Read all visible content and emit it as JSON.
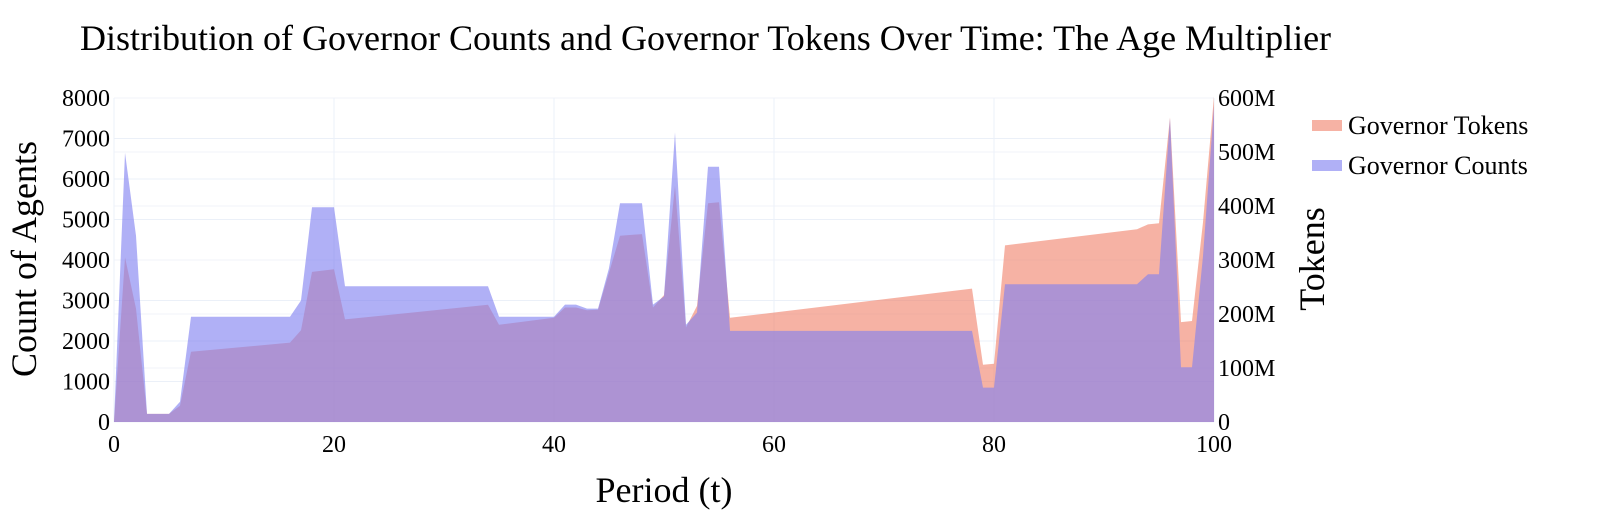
{
  "chart_data": {
    "type": "area",
    "title": "Distribution of Governor Counts and Governor Tokens Over Time: The Age Multiplier",
    "xlabel": "Period (t)",
    "ylabel": "Count of Agents",
    "y2label": "Tokens",
    "xlim": [
      0,
      100
    ],
    "ylim": [
      0,
      8000
    ],
    "y2lim": [
      0,
      600000000
    ],
    "x_ticks": [
      0,
      20,
      40,
      60,
      80,
      100
    ],
    "x_tick_labels": [
      "0",
      "20",
      "40",
      "60",
      "80",
      "100"
    ],
    "y_ticks": [
      0,
      1000,
      2000,
      3000,
      4000,
      5000,
      6000,
      7000,
      8000
    ],
    "y_tick_labels": [
      "0",
      "1000",
      "2000",
      "3000",
      "4000",
      "5000",
      "6000",
      "7000",
      "8000"
    ],
    "y2_ticks": [
      0,
      100000000,
      200000000,
      300000000,
      400000000,
      500000000,
      600000000
    ],
    "y2_tick_labels": [
      "0",
      "100M",
      "200M",
      "300M",
      "400M",
      "500M",
      "600M"
    ],
    "grid": true,
    "legend_position": "top-right",
    "series": [
      {
        "name": "Governor Tokens",
        "axis": "y2",
        "color": "#f0826c",
        "x": [
          0,
          1,
          2,
          3,
          5,
          6,
          7,
          16,
          17,
          18,
          20,
          21,
          34,
          35,
          40,
          41,
          42,
          43,
          44,
          46,
          48,
          49,
          50,
          51,
          52,
          53,
          54,
          55,
          56,
          78,
          79,
          80,
          81,
          93,
          94,
          95,
          96,
          97,
          98,
          99,
          100
        ],
        "y": [
          0,
          305000000,
          210000000,
          15000000,
          15000000,
          30000000,
          130000000,
          147000000,
          170000000,
          278000000,
          283000000,
          190000000,
          217000000,
          180000000,
          193000000,
          212000000,
          212000000,
          207000000,
          208000000,
          345000000,
          348000000,
          212000000,
          235000000,
          438000000,
          175000000,
          215000000,
          405000000,
          407000000,
          193000000,
          247000000,
          106000000,
          108000000,
          327000000,
          357000000,
          366000000,
          368000000,
          564000000,
          185000000,
          187000000,
          370000000,
          603000000
        ]
      },
      {
        "name": "Governor Counts",
        "axis": "y",
        "color": "#7f7ff0",
        "x": [
          0,
          1,
          2,
          3,
          5,
          6,
          7,
          16,
          17,
          18,
          20,
          21,
          34,
          35,
          40,
          41,
          42,
          43,
          44,
          45,
          46,
          48,
          49,
          50,
          51,
          52,
          53,
          54,
          55,
          56,
          78,
          79,
          80,
          81,
          93,
          94,
          95,
          96,
          97,
          98,
          99,
          100
        ],
        "y": [
          0,
          6650,
          4600,
          200,
          200,
          500,
          2600,
          2600,
          3000,
          5300,
          5300,
          3350,
          3350,
          2600,
          2600,
          2900,
          2900,
          2800,
          2800,
          3800,
          5400,
          5400,
          2900,
          3100,
          7150,
          2400,
          2700,
          6300,
          6300,
          2250,
          2250,
          850,
          850,
          3400,
          3400,
          3650,
          3650,
          7500,
          1350,
          1350,
          4100,
          7800
        ]
      }
    ]
  }
}
